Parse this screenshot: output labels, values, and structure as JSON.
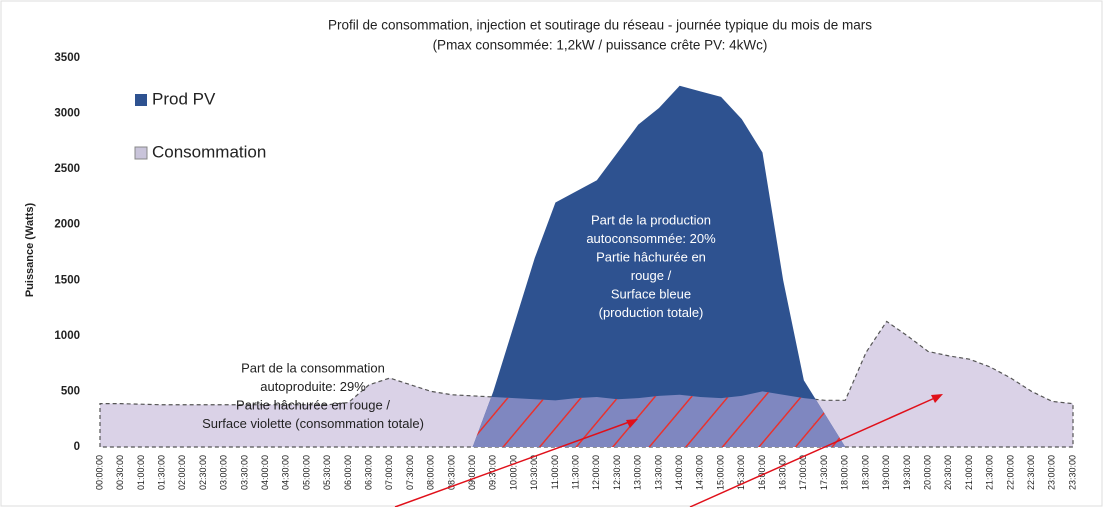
{
  "chart_data": {
    "type": "area",
    "title": [
      "Profil de consommation, injection et soutirage du réseau - journée typique du mois de mars",
      "(Pmax consommée: 1,2kW / puissance crête PV: 4kWc)"
    ],
    "ylabel": "Puissance (Watts)",
    "categories": [
      "00:00:00",
      "00:30:00",
      "01:00:00",
      "01:30:00",
      "02:00:00",
      "02:30:00",
      "03:00:00",
      "03:30:00",
      "04:00:00",
      "04:30:00",
      "05:00:00",
      "05:30:00",
      "06:00:00",
      "06:30:00",
      "07:00:00",
      "07:30:00",
      "08:00:00",
      "08:30:00",
      "09:00:00",
      "09:30:00",
      "10:00:00",
      "10:30:00",
      "11:00:00",
      "11:30:00",
      "12:00:00",
      "12:30:00",
      "13:00:00",
      "13:30:00",
      "14:00:00",
      "14:30:00",
      "15:00:00",
      "15:30:00",
      "16:00:00",
      "16:30:00",
      "17:00:00",
      "17:30:00",
      "18:00:00",
      "18:30:00",
      "19:00:00",
      "19:30:00",
      "20:00:00",
      "20:30:00",
      "21:00:00",
      "21:30:00",
      "22:00:00",
      "22:30:00",
      "23:00:00",
      "23:30:00"
    ],
    "series": [
      {
        "name": "Prod PV",
        "color": "#2e5290",
        "values": [
          0,
          0,
          0,
          0,
          0,
          0,
          0,
          0,
          0,
          0,
          0,
          0,
          0,
          0,
          0,
          0,
          0,
          0,
          0,
          500,
          1100,
          1700,
          2200,
          2300,
          2400,
          2650,
          2900,
          3050,
          3250,
          3200,
          3150,
          2950,
          2650,
          1500,
          600,
          300,
          0,
          0,
          0,
          0,
          0,
          0,
          0,
          0,
          0,
          0,
          0,
          0
        ]
      },
      {
        "name": "Consommation",
        "color": "#d6cde4",
        "values": [
          390,
          390,
          385,
          380,
          380,
          380,
          380,
          380,
          380,
          380,
          380,
          380,
          400,
          560,
          620,
          560,
          500,
          470,
          460,
          450,
          440,
          430,
          420,
          440,
          450,
          430,
          440,
          460,
          470,
          450,
          440,
          460,
          500,
          470,
          440,
          420,
          420,
          850,
          1130,
          1000,
          860,
          820,
          790,
          720,
          620,
          500,
          410,
          390
        ]
      }
    ],
    "ylim": [
      0,
      3500
    ],
    "yticks": [
      0,
      500,
      1000,
      1500,
      2000,
      2500,
      3000,
      3500
    ],
    "annotations": [
      {
        "lines": [
          "Part de la production",
          "autoconsommée: 20%",
          "Partie hâchurée en",
          "rouge /",
          "Surface bleue",
          "(production totale)"
        ]
      },
      {
        "lines": [
          "Part de la consommation",
          "autoproduite: 29%",
          "Partie hâchurée en rouge /",
          "Surface violette (consommation totale)"
        ]
      }
    ]
  }
}
